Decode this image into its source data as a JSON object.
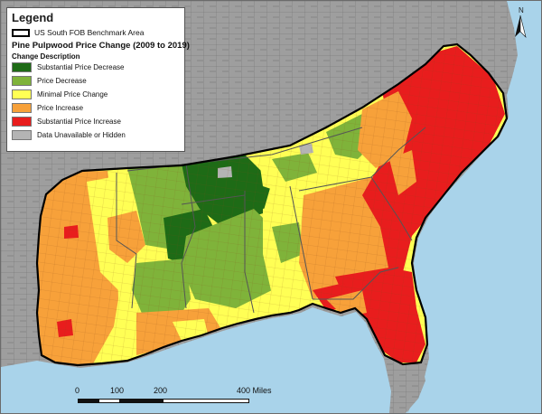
{
  "legend": {
    "title": "Legend",
    "benchmark_label": "US South FOB Benchmark Area",
    "map_title": "Pine Pulpwood Price Change (2009 to 2019)",
    "subheading": "Change Description",
    "classes": [
      {
        "label": "Substantial Price Decrease",
        "color": "#1e6b16"
      },
      {
        "label": "Price Decrease",
        "color": "#7fb33a"
      },
      {
        "label": "Minimal Price Change",
        "color": "#ffff55"
      },
      {
        "label": "Price Increase",
        "color": "#f7a13a"
      },
      {
        "label": "Substantial Price Increase",
        "color": "#e81d1d"
      },
      {
        "label": "Data Unavailable or Hidden",
        "color": "#b4b4b4"
      }
    ]
  },
  "north_arrow": {
    "letter": "N"
  },
  "scale_bar": {
    "labels": [
      "0",
      "100",
      "200",
      "400 Miles"
    ]
  },
  "colors": {
    "water": "#a9d3ea",
    "outside_land": "#9e9e9e",
    "county_lines": "#7a7a7a",
    "state_lines": "#555555",
    "benchmark_outline": "#000000"
  }
}
